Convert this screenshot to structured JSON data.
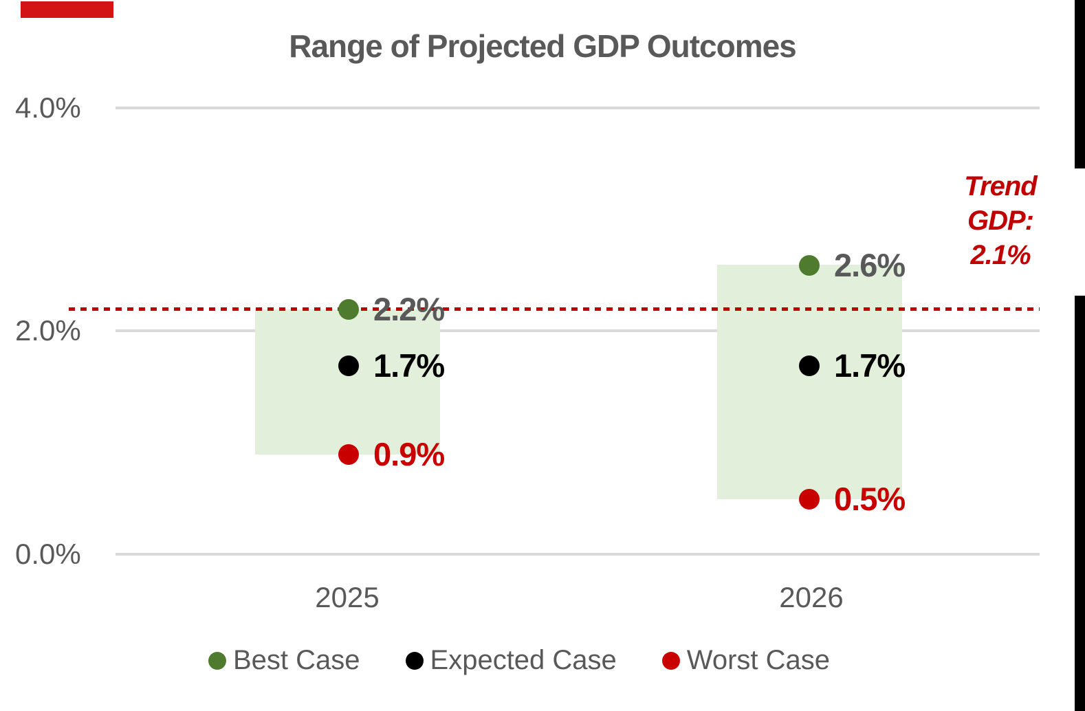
{
  "chart_data": {
    "type": "scatter",
    "title": "Range of Projected GDP Outcomes",
    "categories": [
      "2025",
      "2026"
    ],
    "series": [
      {
        "name": "Best Case",
        "color": "#4e7b2e",
        "values": [
          2.2,
          2.6
        ],
        "labels": [
          "2.2%",
          "2.6%"
        ],
        "label_color": "#595959"
      },
      {
        "name": "Expected Case",
        "color": "#000000",
        "values": [
          1.7,
          1.7
        ],
        "labels": [
          "1.7%",
          "1.7%"
        ],
        "label_color": "#000000"
      },
      {
        "name": "Worst Case",
        "color": "#c80000",
        "values": [
          0.9,
          0.5
        ],
        "labels": [
          "0.9%",
          "0.5%"
        ],
        "label_color": "#c80000"
      }
    ],
    "ranges": [
      {
        "category": "2025",
        "from": 0.9,
        "to": 2.2
      },
      {
        "category": "2026",
        "from": 0.5,
        "to": 2.6
      }
    ],
    "range_fill_color": "#e2efda",
    "y_axis": {
      "ticks": [
        "4.0%",
        "2.0%",
        "0.0%"
      ],
      "tick_values": [
        4.0,
        2.0,
        0.0
      ],
      "min": 0.0,
      "max": 4.0
    },
    "gridline_color": "#d9d9d9",
    "grid": true,
    "legend": {
      "position": "bottom",
      "items": [
        "Best Case",
        "Expected Case",
        "Worst Case"
      ]
    },
    "trend_line": {
      "value": 2.1,
      "style": "dashed",
      "color": "#c00000",
      "label": "Trend GDP: 2.1%",
      "label_lines": [
        "Trend",
        "GDP:",
        "2.1%"
      ]
    },
    "text_color": "#595959"
  },
  "decorations": {
    "top_left_bar_color": "#d21414",
    "right_edge_bar_color": "#000000"
  }
}
